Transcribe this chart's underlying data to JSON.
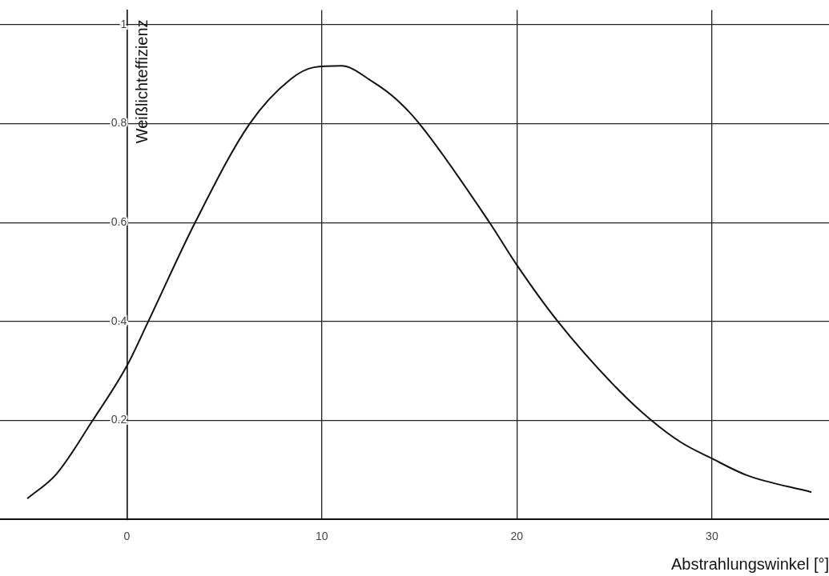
{
  "chart_data": {
    "type": "line",
    "xlabel": "Abstrahlungswinkel [°]",
    "ylabel": "Weißlichteffizienz",
    "x": [
      -5.1,
      -3.6,
      -1.75,
      0,
      1.1,
      3.5,
      6.3,
      8.4,
      9.6,
      11,
      12.6,
      13.8,
      15,
      18.6,
      20,
      22.1,
      25.1,
      26.9,
      28.4,
      30,
      31.8,
      35.1
    ],
    "series": [
      {
        "color": "#111111",
        "values": [
          0.042,
          0.092,
          0.2,
          0.31,
          0.4,
          0.6,
          0.8,
          0.89,
          0.914,
          0.917,
          0.885,
          0.85,
          0.8,
          0.6,
          0.514,
          0.4,
          0.266,
          0.2,
          0.156,
          0.123,
          0.089,
          0.055
        ]
      }
    ],
    "xlim": [
      -6.5,
      36
    ],
    "ylim": [
      0,
      1.03
    ],
    "xticks": [
      0,
      10,
      20,
      30
    ],
    "yticks": [
      0.2,
      0.4,
      0.6,
      0.8,
      {
        "value": 1,
        "label": "1"
      }
    ],
    "grid": true,
    "legend": false,
    "marker": "none",
    "line_style": "solid"
  }
}
